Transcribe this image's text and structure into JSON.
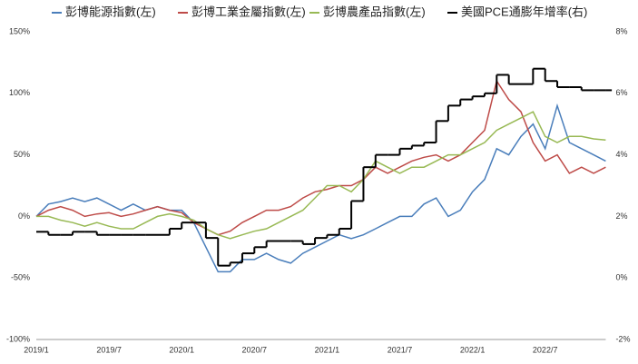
{
  "chart_data": {
    "type": "line",
    "categories": [
      "2019/1",
      null,
      null,
      null,
      null,
      null,
      "2019/7",
      null,
      null,
      null,
      null,
      null,
      "2020/1",
      null,
      null,
      null,
      null,
      null,
      "2020/7",
      null,
      null,
      null,
      null,
      null,
      "2021/1",
      null,
      null,
      null,
      null,
      null,
      "2021/7",
      null,
      null,
      null,
      null,
      null,
      "2022/1",
      null,
      null,
      null,
      null,
      null,
      "2022/7",
      null,
      null,
      null,
      null,
      null
    ],
    "series": [
      {
        "name": "彭博能源指數(左)",
        "color": "#4a7ebb",
        "values": [
          0,
          10,
          12,
          15,
          12,
          15,
          10,
          5,
          10,
          5,
          8,
          5,
          5,
          -5,
          -25,
          -45,
          -45,
          -35,
          -35,
          -30,
          -35,
          -38,
          -30,
          -25,
          -20,
          -15,
          -18,
          -15,
          -10,
          -5,
          0,
          0,
          10,
          15,
          0,
          5,
          20,
          30,
          55,
          50,
          65,
          75,
          55,
          90,
          60,
          55,
          50,
          45
        ]
      },
      {
        "name": "彭博工業金屬指數(左)",
        "color": "#be4b48",
        "values": [
          0,
          5,
          8,
          5,
          0,
          2,
          3,
          0,
          2,
          5,
          8,
          5,
          3,
          -5,
          -10,
          -15,
          -12,
          -5,
          0,
          5,
          5,
          8,
          15,
          20,
          22,
          25,
          25,
          30,
          40,
          35,
          40,
          45,
          48,
          50,
          45,
          50,
          60,
          70,
          110,
          95,
          85,
          60,
          45,
          50,
          35,
          40,
          35,
          40
        ]
      },
      {
        "name": "彭博農產品指數(左)",
        "color": "#98b954",
        "values": [
          0,
          0,
          -3,
          -5,
          -8,
          -5,
          -8,
          -10,
          -10,
          -5,
          0,
          2,
          0,
          -3,
          -10,
          -15,
          -18,
          -15,
          -12,
          -10,
          -5,
          0,
          5,
          15,
          25,
          25,
          20,
          30,
          45,
          40,
          35,
          40,
          40,
          45,
          50,
          50,
          55,
          60,
          70,
          75,
          80,
          85,
          65,
          60,
          65,
          65,
          63,
          62
        ]
      },
      {
        "name": "美國PCE通膨年增率(右)",
        "color": "#000000",
        "axis": "y2",
        "step": true,
        "values": [
          1.5,
          1.4,
          1.4,
          1.5,
          1.5,
          1.4,
          1.4,
          1.4,
          1.4,
          1.4,
          1.4,
          1.6,
          1.8,
          1.8,
          1.3,
          0.4,
          0.5,
          0.8,
          1.0,
          1.2,
          1.2,
          1.2,
          1.1,
          1.3,
          1.4,
          1.6,
          2.5,
          3.6,
          4.0,
          4.0,
          4.2,
          4.3,
          4.4,
          5.1,
          5.6,
          5.8,
          5.9,
          6.0,
          6.6,
          6.3,
          6.3,
          6.8,
          6.4,
          6.2,
          6.2,
          6.1,
          6.1,
          6.1
        ]
      }
    ],
    "ylim": [
      -100,
      150
    ],
    "yticks": [
      {
        "value": -100,
        "label": "-100%"
      },
      {
        "value": -50,
        "label": "-50%"
      },
      {
        "value": 0,
        "label": "0%"
      },
      {
        "value": 50,
        "label": "50%"
      },
      {
        "value": 100,
        "label": "100%"
      },
      {
        "value": 150,
        "label": "150%"
      }
    ],
    "y2lim": [
      -2,
      8
    ],
    "y2ticks": [
      {
        "value": -2,
        "label": "-2%"
      },
      {
        "value": 0,
        "label": "0%"
      },
      {
        "value": 2,
        "label": "2%"
      },
      {
        "value": 4,
        "label": "4%"
      },
      {
        "value": 6,
        "label": "6%"
      },
      {
        "value": 8,
        "label": "8%"
      }
    ],
    "grid": false
  }
}
